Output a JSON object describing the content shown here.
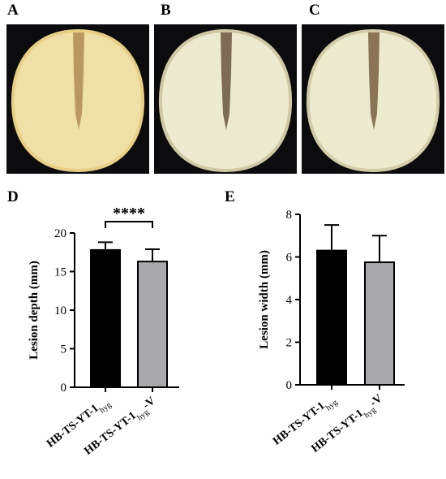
{
  "panels": {
    "a": "A",
    "b": "B",
    "c": "C",
    "d": "D",
    "e": "E"
  },
  "photos": [
    {
      "name": "photo-tuber-a",
      "flesh": "#efe0a8",
      "edge": "#e8cf86",
      "lesion": "#b08a55"
    },
    {
      "name": "photo-tuber-b",
      "flesh": "#ecead0",
      "edge": "#cfc8a4",
      "lesion": "#6b5540"
    },
    {
      "name": "photo-tuber-c",
      "flesh": "#ecebcf",
      "edge": "#d3cca8",
      "lesion": "#7a5e40"
    }
  ],
  "chart_data": [
    {
      "type": "bar",
      "panel": "D",
      "categories": [
        {
          "main": "HB-TS-YT-1",
          "sub": "hyg",
          "suffix": ""
        },
        {
          "main": "HB-TS-YT-1",
          "sub": "hyg",
          "suffix": "-V"
        }
      ],
      "values": [
        17.8,
        16.3
      ],
      "errors": [
        1.0,
        1.6
      ],
      "colors": [
        "#000000",
        "#a9a9ad"
      ],
      "ylabel": "Lesion depth (mm)",
      "ylim": [
        0,
        20
      ],
      "yticks": [
        0,
        5,
        10,
        15,
        20
      ],
      "significance": "****"
    },
    {
      "type": "bar",
      "panel": "E",
      "categories": [
        {
          "main": "HB-TS-YT-1",
          "sub": "hyg",
          "suffix": ""
        },
        {
          "main": "HB-TS-YT-1",
          "sub": "hyg",
          "suffix": "-V"
        }
      ],
      "values": [
        6.3,
        5.75
      ],
      "errors": [
        1.2,
        1.25
      ],
      "colors": [
        "#000000",
        "#a9a9ad"
      ],
      "ylabel": "Lesion width (mm)",
      "ylim": [
        0,
        8
      ],
      "yticks": [
        0,
        2,
        4,
        6,
        8
      ],
      "significance": ""
    }
  ]
}
